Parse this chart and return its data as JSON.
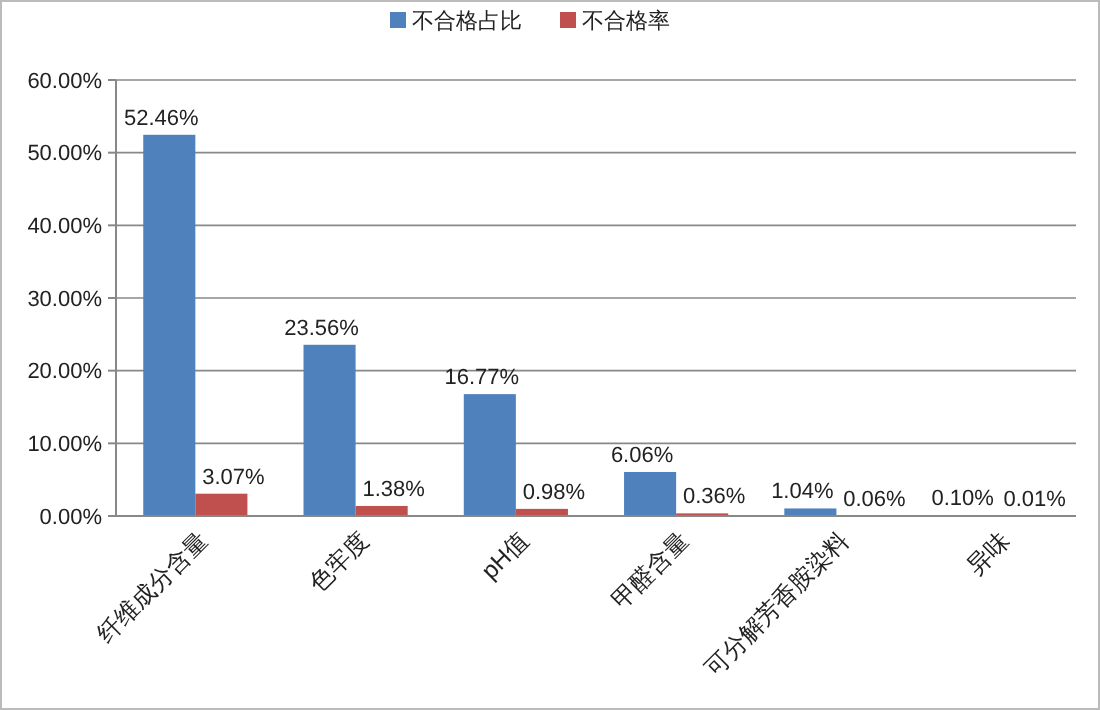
{
  "chart_data": {
    "type": "bar",
    "categories": [
      "纤维成分含量",
      "色牢度",
      "pH值",
      "甲醛含量",
      "可分解芳香胺染料",
      "异味"
    ],
    "series": [
      {
        "name": "不合格占比",
        "color": "#4f81bd",
        "values": [
          52.46,
          23.56,
          16.77,
          6.06,
          1.04,
          0.1
        ],
        "value_labels": [
          "52.46%",
          "23.56%",
          "16.77%",
          "6.06%",
          "1.04%",
          "0.10%"
        ]
      },
      {
        "name": "不合格率",
        "color": "#c0504d",
        "values": [
          3.07,
          1.38,
          0.98,
          0.36,
          0.06,
          0.01
        ],
        "value_labels": [
          "3.07%",
          "1.38%",
          "0.98%",
          "0.36%",
          "0.06%",
          "0.01%"
        ]
      }
    ],
    "ylim": [
      0,
      60
    ],
    "yticks": [
      {
        "value": 0,
        "label": "0.00%"
      },
      {
        "value": 10,
        "label": "10.00%"
      },
      {
        "value": 20,
        "label": "20.00%"
      },
      {
        "value": 30,
        "label": "30.00%"
      },
      {
        "value": 40,
        "label": "40.00%"
      },
      {
        "value": 50,
        "label": "50.00%"
      },
      {
        "value": 60,
        "label": "60.00%"
      }
    ],
    "grid": true,
    "legend": "top"
  }
}
